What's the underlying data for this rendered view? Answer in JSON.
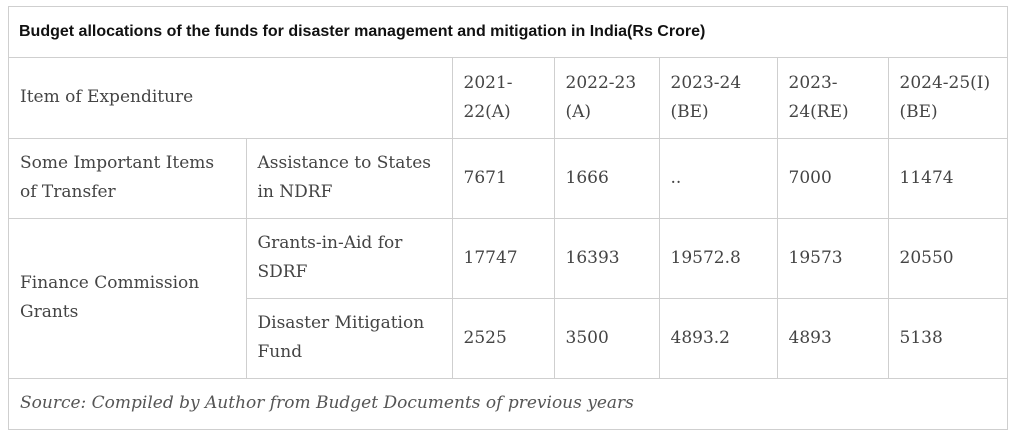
{
  "table": {
    "title": "Budget allocations of the funds for disaster management and mitigation in India(Rs Crore)",
    "header": {
      "item": "Item of Expenditure",
      "years": [
        "2021-22(A)",
        "2022-23 (A)",
        "2023-24 (BE)",
        "2023-24(RE)",
        "2024-25(I)(BE)"
      ]
    },
    "groups": {
      "transfer": "Some Important Items of Transfer",
      "finance": "Finance Commission Grants"
    },
    "rows": [
      {
        "item": "Assistance to States in NDRF",
        "values": [
          "7671",
          "1666",
          "..",
          "7000",
          "11474"
        ]
      },
      {
        "item": "Grants-in-Aid for SDRF",
        "values": [
          "17747",
          "16393",
          "19572.8",
          "19573",
          "20550"
        ]
      },
      {
        "item": "Disaster Mitigation Fund",
        "values": [
          "2525",
          "3500",
          "4893.2",
          "4893",
          "5138"
        ]
      }
    ],
    "source": "Source: Compiled by Author from Budget Documents of previous years"
  }
}
